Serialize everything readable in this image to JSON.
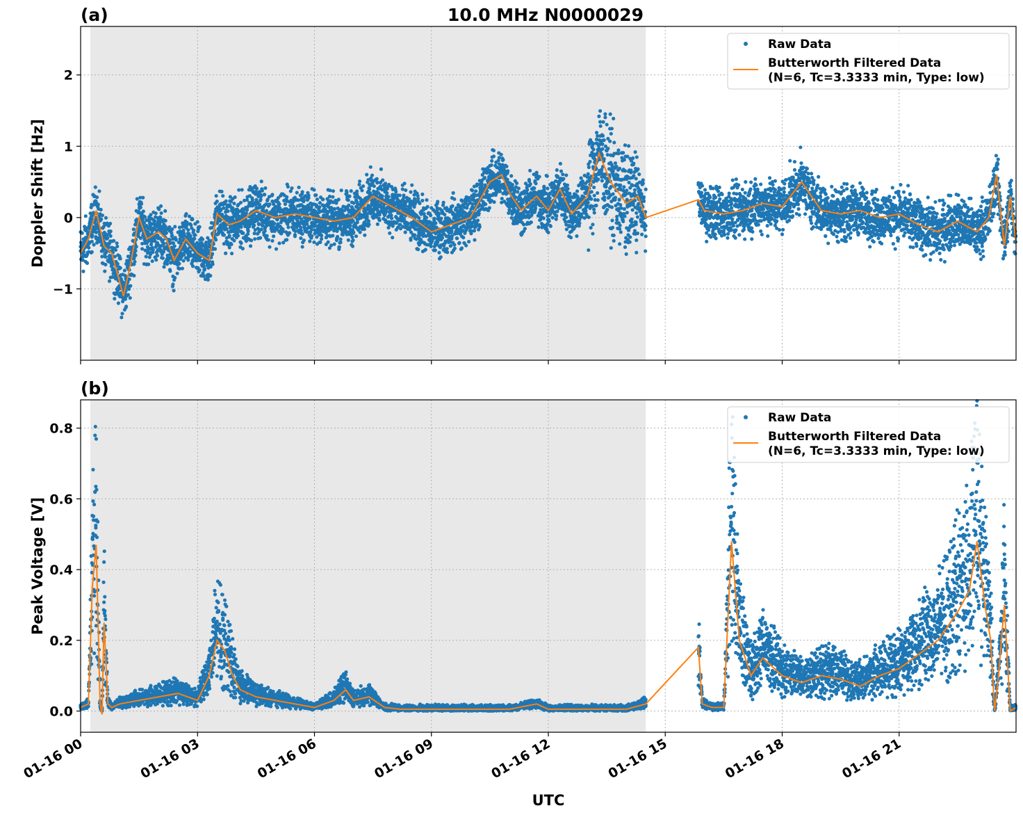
{
  "chart_data": {
    "type": "scatter",
    "title": "10.0 MHz N0000029",
    "xlabel": "UTC",
    "x_tick_labels": [
      "01-16 00",
      "01-16 03",
      "01-16 06",
      "01-16 09",
      "01-16 12",
      "01-16 15",
      "01-16 18",
      "01-16 21"
    ],
    "x_ticks_hours": [
      0,
      3,
      6,
      9,
      12,
      15,
      18,
      21
    ],
    "xlim_hours": [
      0,
      24
    ],
    "grid": true,
    "night_shading_hours": [
      0.25,
      14.5
    ],
    "data_gap_hours": [
      14.5,
      15.85
    ],
    "colors": {
      "raw": "#1f77b4",
      "filtered": "#ff7f0e",
      "shade": "#e8e8e8"
    },
    "legend": {
      "placement": "top-right",
      "raw_label": "Raw Data",
      "filtered_label_line1": "Butterworth Filtered Data",
      "filtered_label_line2": "(N=6, Tc=3.3333 min, Type: low)"
    },
    "panels": [
      {
        "panel_label": "(a)",
        "ylabel": "Doppler Shift [Hz]",
        "ylim": [
          -2.0,
          2.68
        ],
        "y_ticks": [
          -1,
          0,
          1,
          2
        ],
        "y_tick_labels": [
          "−1",
          "0",
          "1",
          "2"
        ],
        "series": [
          {
            "name": "Butterworth Filtered Data",
            "x_hours": [
              0,
              0.2,
              0.4,
              0.6,
              0.8,
              1.0,
              1.1,
              1.3,
              1.5,
              1.7,
              2.0,
              2.2,
              2.4,
              2.7,
              3.0,
              3.3,
              3.5,
              3.6,
              3.8,
              4.1,
              4.5,
              5.0,
              5.5,
              6.0,
              6.5,
              7.0,
              7.5,
              8.0,
              8.5,
              9.0,
              9.5,
              10.0,
              10.5,
              10.8,
              11.0,
              11.3,
              11.7,
              12.0,
              12.3,
              12.6,
              13.0,
              13.3,
              13.6,
              14.0,
              14.3,
              14.5,
              15.85,
              16.0,
              16.5,
              17.0,
              17.5,
              18.0,
              18.5,
              19.0,
              19.5,
              20.0,
              20.5,
              21.0,
              21.5,
              22.0,
              22.5,
              23.0,
              23.3,
              23.5,
              23.7,
              23.85,
              24.0
            ],
            "y": [
              -0.5,
              -0.3,
              0.1,
              -0.4,
              -0.5,
              -0.9,
              -1.1,
              -0.6,
              0.0,
              -0.3,
              -0.2,
              -0.3,
              -0.6,
              -0.3,
              -0.5,
              -0.6,
              0.05,
              0.0,
              -0.1,
              -0.05,
              0.1,
              0.0,
              0.05,
              0.0,
              -0.05,
              0.0,
              0.3,
              0.15,
              0.0,
              -0.2,
              -0.1,
              0.0,
              0.5,
              0.6,
              0.35,
              0.1,
              0.3,
              0.1,
              0.4,
              0.05,
              0.3,
              0.9,
              0.5,
              0.2,
              0.3,
              0.0,
              0.25,
              0.1,
              0.05,
              0.1,
              0.2,
              0.15,
              0.5,
              0.1,
              0.05,
              0.1,
              0.0,
              0.05,
              -0.1,
              -0.2,
              -0.05,
              -0.2,
              0.0,
              0.6,
              -0.4,
              0.3,
              -0.35
            ]
          },
          {
            "name": "Raw Data",
            "scatter_band_hours": [
              [
                0,
                14.5
              ],
              [
                15.85,
                24.0
              ]
            ],
            "approx_spread_hz": 0.35
          }
        ]
      },
      {
        "panel_label": "(b)",
        "ylabel": "Peak Voltage [V]",
        "ylim": [
          -0.06,
          0.88
        ],
        "y_ticks": [
          0.0,
          0.2,
          0.4,
          0.6,
          0.8
        ],
        "y_tick_labels": [
          "0.0",
          "0.2",
          "0.4",
          "0.6",
          "0.8"
        ],
        "series": [
          {
            "name": "Butterworth Filtered Data",
            "x_hours": [
              0,
              0.2,
              0.3,
              0.4,
              0.5,
              0.55,
              0.6,
              0.7,
              0.8,
              1.0,
              1.5,
              2.0,
              2.5,
              3.0,
              3.3,
              3.5,
              3.7,
              3.9,
              4.1,
              4.5,
              5.0,
              5.5,
              6.0,
              6.5,
              6.8,
              7.0,
              7.4,
              7.8,
              8.2,
              9.0,
              10.0,
              11.0,
              11.7,
              12.0,
              13.0,
              14.0,
              14.5,
              15.85,
              15.95,
              16.2,
              16.5,
              16.7,
              16.9,
              17.2,
              17.5,
              18.0,
              18.5,
              19.0,
              19.5,
              20.0,
              20.5,
              21.0,
              21.5,
              22.0,
              22.5,
              22.8,
              23.0,
              23.2,
              23.35,
              23.45,
              23.55,
              23.7,
              23.85,
              24.0
            ],
            "y": [
              0.01,
              0.02,
              0.35,
              0.47,
              0.02,
              -0.01,
              0.25,
              0.02,
              0.01,
              0.02,
              0.03,
              0.04,
              0.05,
              0.03,
              0.1,
              0.2,
              0.17,
              0.1,
              0.06,
              0.04,
              0.03,
              0.02,
              0.01,
              0.03,
              0.06,
              0.03,
              0.04,
              0.01,
              0.005,
              0.005,
              0.005,
              0.005,
              0.02,
              0.005,
              0.005,
              0.005,
              0.02,
              0.18,
              0.02,
              0.01,
              0.01,
              0.48,
              0.2,
              0.1,
              0.15,
              0.1,
              0.08,
              0.1,
              0.09,
              0.07,
              0.1,
              0.12,
              0.16,
              0.2,
              0.28,
              0.34,
              0.48,
              0.3,
              0.2,
              0.0,
              0.1,
              0.3,
              0.0,
              0.01
            ]
          },
          {
            "name": "Raw Data",
            "scatter_band_hours": [
              [
                0,
                14.5
              ],
              [
                15.85,
                24.0
              ]
            ],
            "approx_spread_fraction": 0.6
          }
        ]
      }
    ]
  }
}
